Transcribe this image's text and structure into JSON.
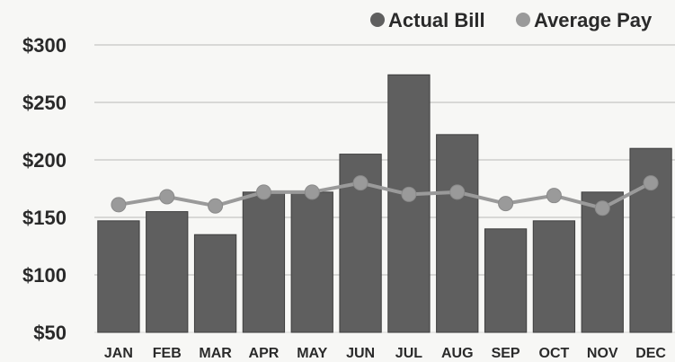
{
  "chart_data": {
    "type": "bar",
    "categories": [
      "JAN",
      "FEB",
      "MAR",
      "APR",
      "MAY",
      "JUN",
      "JUL",
      "AUG",
      "SEP",
      "OCT",
      "NOV",
      "DEC"
    ],
    "series": [
      {
        "name": "Actual Bill",
        "type": "bar",
        "color": "#5f5f5f",
        "values": [
          147,
          155,
          135,
          172,
          172,
          205,
          274,
          222,
          140,
          147,
          172,
          210
        ]
      },
      {
        "name": "Average Pay",
        "type": "line",
        "color": "#9a9a9a",
        "values": [
          161,
          168,
          160,
          172,
          172,
          180,
          170,
          172,
          162,
          169,
          158,
          180
        ]
      }
    ],
    "yticks": [
      {
        "value": 50,
        "label": "$50"
      },
      {
        "value": 100,
        "label": "$100"
      },
      {
        "value": 150,
        "label": "$150"
      },
      {
        "value": 200,
        "label": "$200"
      },
      {
        "value": 250,
        "label": "$250"
      },
      {
        "value": 300,
        "label": "$300"
      }
    ],
    "ylim": [
      50,
      300
    ],
    "grid": true,
    "legend_position": "top-right",
    "title": "",
    "xlabel": "",
    "ylabel": ""
  }
}
